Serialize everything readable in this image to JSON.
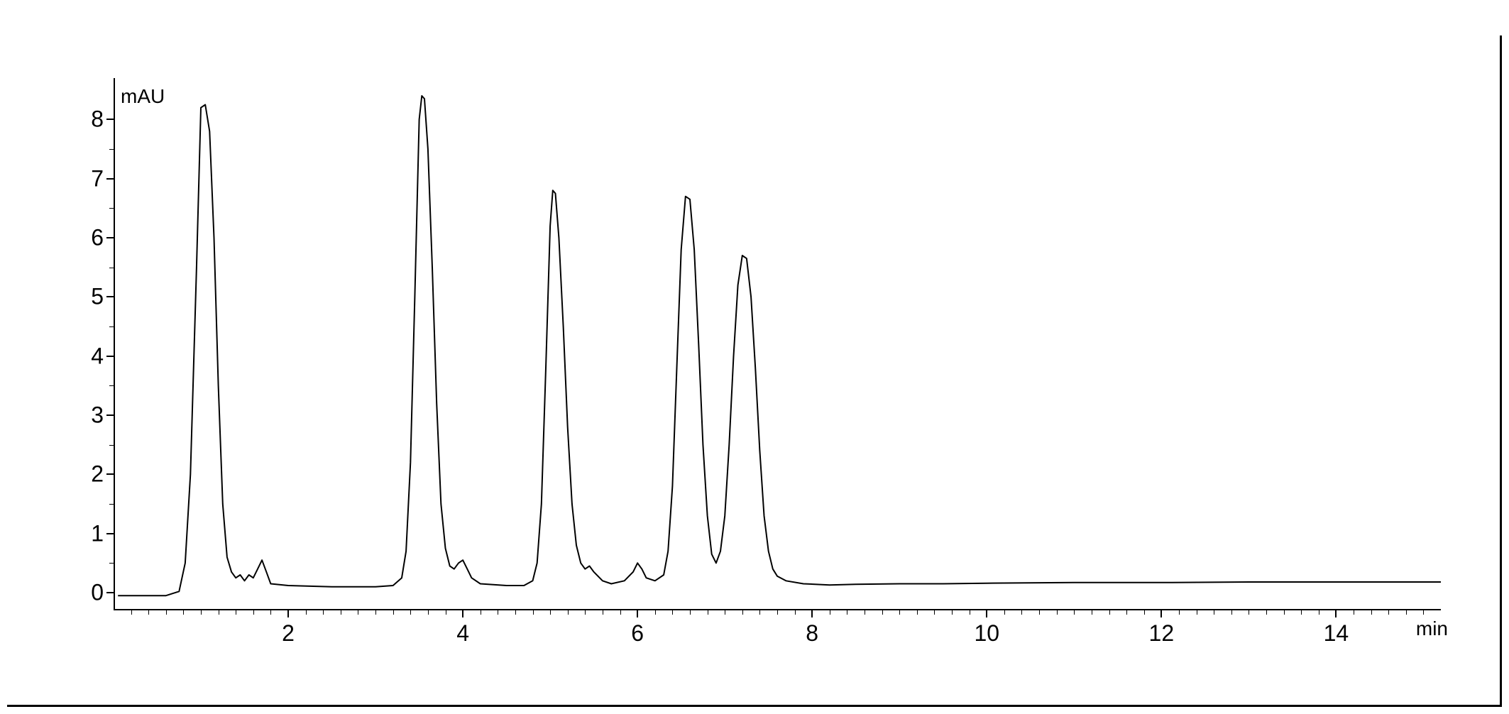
{
  "chart": {
    "type": "line",
    "y_axis": {
      "title": "mAU",
      "min": -0.3,
      "max": 8.7,
      "major_ticks": [
        0,
        1,
        2,
        3,
        4,
        5,
        6,
        7,
        8
      ],
      "tick_labels": [
        "0",
        "1",
        "2",
        "3",
        "4",
        "5",
        "6",
        "7",
        "8"
      ],
      "minor_ticks": [
        0.5,
        1.5,
        2.5,
        3.5,
        4.5,
        5.5,
        6.5,
        7.5
      ]
    },
    "x_axis": {
      "title": "min",
      "min": 0,
      "max": 15.2,
      "major_ticks": [
        2,
        4,
        6,
        8,
        10,
        12,
        14
      ],
      "tick_labels": [
        "2",
        "4",
        "6",
        "8",
        "10",
        "12",
        "14"
      ],
      "minor_ticks": [
        0.2,
        0.4,
        0.6,
        0.8,
        1,
        1.2,
        1.4,
        1.6,
        1.8,
        2.2,
        2.4,
        2.6,
        2.8,
        3,
        3.2,
        3.4,
        3.6,
        3.8,
        4.2,
        4.4,
        4.6,
        4.8,
        5,
        5.2,
        5.4,
        5.6,
        5.8,
        6.2,
        6.4,
        6.6,
        6.8,
        7,
        7.2,
        7.4,
        7.6,
        7.8,
        8.2,
        8.4,
        8.6,
        8.8,
        9,
        9.2,
        9.4,
        9.6,
        9.8,
        10.2,
        10.4,
        10.6,
        10.8,
        11,
        11.2,
        11.4,
        11.6,
        11.8,
        12.2,
        12.4,
        12.6,
        12.8,
        13,
        13.2,
        13.4,
        13.6,
        13.8,
        14.2,
        14.4,
        14.6,
        14.8,
        15
      ]
    },
    "trace": {
      "color": "#000000",
      "line_width": 2,
      "points": [
        [
          0.05,
          -0.05
        ],
        [
          0.6,
          -0.05
        ],
        [
          0.75,
          0.02
        ],
        [
          0.82,
          0.5
        ],
        [
          0.88,
          2.0
        ],
        [
          0.95,
          5.5
        ],
        [
          1.0,
          8.2
        ],
        [
          1.05,
          8.25
        ],
        [
          1.1,
          7.8
        ],
        [
          1.15,
          6.0
        ],
        [
          1.2,
          3.5
        ],
        [
          1.25,
          1.5
        ],
        [
          1.3,
          0.6
        ],
        [
          1.35,
          0.35
        ],
        [
          1.4,
          0.25
        ],
        [
          1.45,
          0.3
        ],
        [
          1.5,
          0.2
        ],
        [
          1.55,
          0.3
        ],
        [
          1.6,
          0.25
        ],
        [
          1.65,
          0.4
        ],
        [
          1.7,
          0.55
        ],
        [
          1.75,
          0.35
        ],
        [
          1.8,
          0.15
        ],
        [
          2.0,
          0.12
        ],
        [
          2.5,
          0.1
        ],
        [
          3.0,
          0.1
        ],
        [
          3.2,
          0.12
        ],
        [
          3.3,
          0.25
        ],
        [
          3.35,
          0.7
        ],
        [
          3.4,
          2.2
        ],
        [
          3.45,
          5.0
        ],
        [
          3.5,
          8.0
        ],
        [
          3.53,
          8.4
        ],
        [
          3.56,
          8.35
        ],
        [
          3.6,
          7.5
        ],
        [
          3.65,
          5.5
        ],
        [
          3.7,
          3.2
        ],
        [
          3.75,
          1.5
        ],
        [
          3.8,
          0.75
        ],
        [
          3.85,
          0.45
        ],
        [
          3.9,
          0.4
        ],
        [
          3.95,
          0.5
        ],
        [
          4.0,
          0.55
        ],
        [
          4.05,
          0.4
        ],
        [
          4.1,
          0.25
        ],
        [
          4.2,
          0.15
        ],
        [
          4.5,
          0.12
        ],
        [
          4.7,
          0.12
        ],
        [
          4.8,
          0.2
        ],
        [
          4.85,
          0.5
        ],
        [
          4.9,
          1.5
        ],
        [
          4.95,
          3.8
        ],
        [
          5.0,
          6.2
        ],
        [
          5.03,
          6.8
        ],
        [
          5.06,
          6.75
        ],
        [
          5.1,
          6.0
        ],
        [
          5.15,
          4.5
        ],
        [
          5.2,
          2.8
        ],
        [
          5.25,
          1.5
        ],
        [
          5.3,
          0.8
        ],
        [
          5.35,
          0.5
        ],
        [
          5.4,
          0.4
        ],
        [
          5.45,
          0.45
        ],
        [
          5.5,
          0.35
        ],
        [
          5.6,
          0.2
        ],
        [
          5.7,
          0.15
        ],
        [
          5.85,
          0.2
        ],
        [
          5.95,
          0.35
        ],
        [
          6.0,
          0.5
        ],
        [
          6.05,
          0.4
        ],
        [
          6.1,
          0.25
        ],
        [
          6.2,
          0.2
        ],
        [
          6.3,
          0.3
        ],
        [
          6.35,
          0.7
        ],
        [
          6.4,
          1.8
        ],
        [
          6.45,
          3.8
        ],
        [
          6.5,
          5.8
        ],
        [
          6.55,
          6.7
        ],
        [
          6.6,
          6.65
        ],
        [
          6.65,
          5.8
        ],
        [
          6.7,
          4.2
        ],
        [
          6.75,
          2.5
        ],
        [
          6.8,
          1.3
        ],
        [
          6.85,
          0.65
        ],
        [
          6.9,
          0.5
        ],
        [
          6.95,
          0.7
        ],
        [
          7.0,
          1.3
        ],
        [
          7.05,
          2.5
        ],
        [
          7.1,
          4.0
        ],
        [
          7.15,
          5.2
        ],
        [
          7.2,
          5.7
        ],
        [
          7.25,
          5.65
        ],
        [
          7.3,
          5.0
        ],
        [
          7.35,
          3.8
        ],
        [
          7.4,
          2.4
        ],
        [
          7.45,
          1.3
        ],
        [
          7.5,
          0.7
        ],
        [
          7.55,
          0.4
        ],
        [
          7.6,
          0.28
        ],
        [
          7.7,
          0.2
        ],
        [
          7.9,
          0.15
        ],
        [
          8.2,
          0.13
        ],
        [
          8.5,
          0.14
        ],
        [
          9.0,
          0.15
        ],
        [
          9.5,
          0.15
        ],
        [
          10.0,
          0.16
        ],
        [
          11.0,
          0.17
        ],
        [
          12.0,
          0.17
        ],
        [
          13.0,
          0.18
        ],
        [
          14.0,
          0.18
        ],
        [
          15.0,
          0.18
        ],
        [
          15.2,
          0.18
        ]
      ]
    },
    "background_color": "#ffffff",
    "axis_color": "#000000",
    "title_fontsize": 28,
    "label_fontsize": 32
  }
}
